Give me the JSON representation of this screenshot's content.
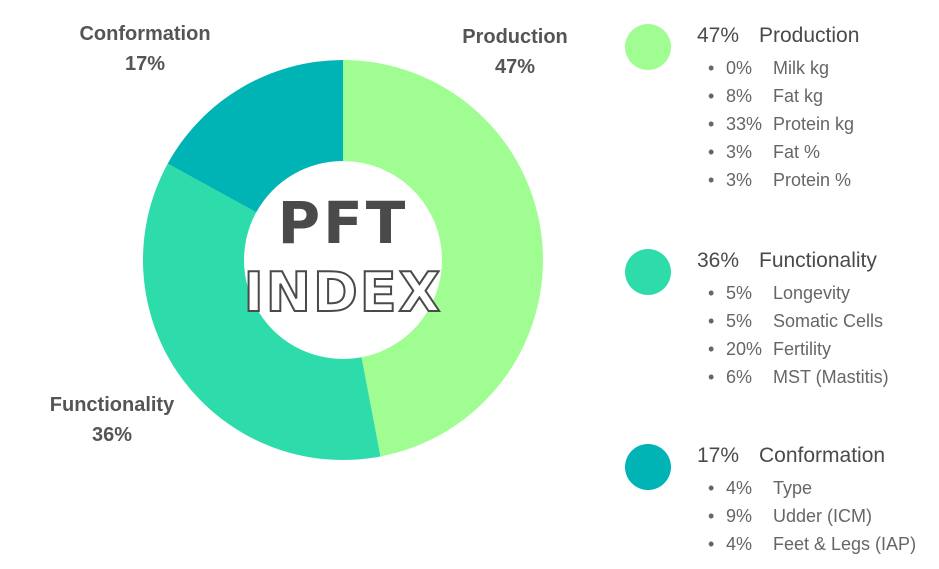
{
  "chart_data": {
    "type": "pie",
    "variant": "donut",
    "center_title": [
      "PFT",
      "INDEX"
    ],
    "slices": [
      {
        "name": "Production",
        "pct_label": "47%",
        "value": 47,
        "color": "#a0fd91"
      },
      {
        "name": "Functionality",
        "pct_label": "36%",
        "value": 36,
        "color": "#2ddcaa"
      },
      {
        "name": "Conformation",
        "pct_label": "17%",
        "value": 17,
        "color": "#00b3b5"
      }
    ],
    "legend": [
      {
        "pct_label": "47%",
        "name": "Production",
        "color": "#a0fd91",
        "items": [
          {
            "pct": "0%",
            "label": "Milk kg"
          },
          {
            "pct": "8%",
            "label": "Fat kg"
          },
          {
            "pct": "33%",
            "label": "Protein kg"
          },
          {
            "pct": "3%",
            "label": "Fat %"
          },
          {
            "pct": "3%",
            "label": "Protein %"
          }
        ]
      },
      {
        "pct_label": "36%",
        "name": "Functionality",
        "color": "#2ddcaa",
        "items": [
          {
            "pct": "5%",
            "label": "Longevity"
          },
          {
            "pct": "5%",
            "label": "Somatic Cells"
          },
          {
            "pct": "20%",
            "label": "Fertility"
          },
          {
            "pct": "6%",
            "label": "MST (Mastitis)"
          }
        ]
      },
      {
        "pct_label": "17%",
        "name": "Conformation",
        "color": "#00b3b5",
        "items": [
          {
            "pct": "4%",
            "label": "Type"
          },
          {
            "pct": "9%",
            "label": "Udder (ICM)"
          },
          {
            "pct": "4%",
            "label": "Feet & Legs (IAP)"
          }
        ]
      }
    ]
  }
}
